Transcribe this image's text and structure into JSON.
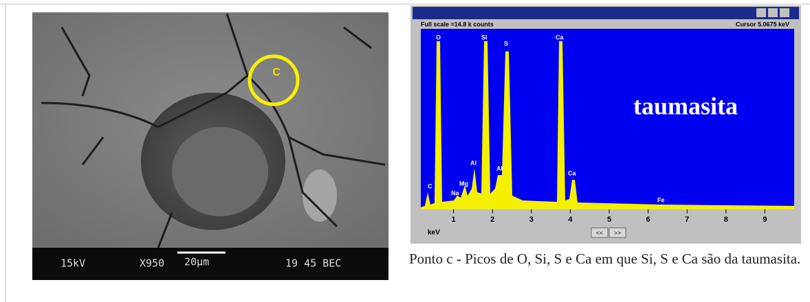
{
  "sem_image": {
    "marker": "C",
    "info_bar": {
      "voltage": "15kV",
      "magnification": "X950",
      "scale": "20µm",
      "code": "19 45 BEC"
    }
  },
  "spectrum_window": {
    "full_scale": "Full scale =14.8 k counts",
    "cursor": "Cursor 5.0675 keV",
    "peak_labels": [
      "C",
      "O",
      "Na",
      "Mg",
      "Al",
      "Si",
      "Al",
      "S",
      "Ca",
      "Ca",
      "Fe"
    ],
    "axis_ticks": [
      1,
      2,
      3,
      4,
      5,
      6,
      7,
      8,
      9
    ],
    "axis_unit": "keV",
    "nav_buttons": [
      "<<",
      ">>"
    ],
    "annotation": "taumasita"
  },
  "caption": "Ponto c - Picos de O, Si, S e Ca em que Si, S e Ca são da taumasita."
}
